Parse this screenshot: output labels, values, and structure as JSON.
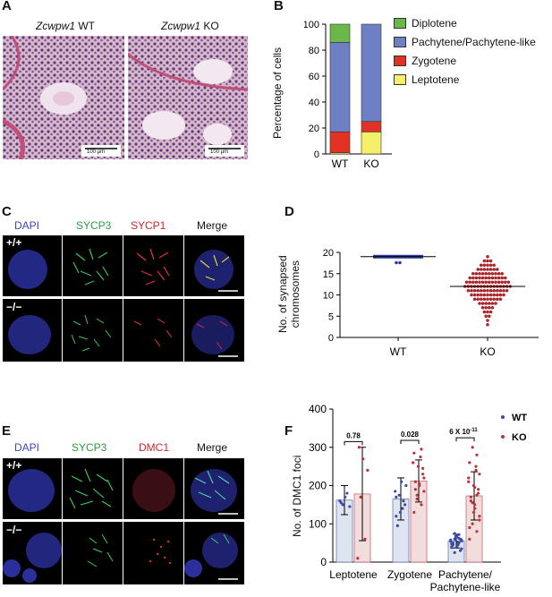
{
  "panel_letters": {
    "a": "A",
    "b": "B",
    "c": "C",
    "d": "D",
    "e": "E",
    "f": "F"
  },
  "panelA": {
    "wt_title_italic": "Zcwpw1",
    "wt_title_suffix": " WT",
    "ko_title_italic": "Zcwpw1",
    "ko_title_suffix": " KO",
    "scale_bar_label": "100 μm"
  },
  "panelB": {
    "ylabel": "Percentage of cells",
    "yticks": [
      "0",
      "20",
      "40",
      "60",
      "80",
      "100"
    ],
    "legend": [
      {
        "label": "Diplotene",
        "color": "#6ab84a"
      },
      {
        "label": "Pachytene/Pachytene-like",
        "color": "#6f7fc3"
      },
      {
        "label": "Zygotene",
        "color": "#e23226"
      },
      {
        "label": "Leptotene",
        "color": "#f5ef6a"
      }
    ]
  },
  "panelC": {
    "channels": [
      {
        "label": "DAPI",
        "color": "#3b45c4"
      },
      {
        "label": "SYCP3",
        "color": "#2e9a48"
      },
      {
        "label": "SYCP1",
        "color": "#d4252e"
      },
      {
        "label": "Merge",
        "color": "#111111"
      }
    ],
    "row_labels": [
      "+/+",
      "−/−"
    ]
  },
  "panelD": {
    "ylabel_line1": "No. of synapsed",
    "ylabel_line2": "chromosomes",
    "yticks": [
      "0",
      "5",
      "10",
      "15",
      "20"
    ],
    "xticks": [
      "WT",
      "KO"
    ]
  },
  "panelE": {
    "channels": [
      {
        "label": "DAPI",
        "color": "#3b45c4"
      },
      {
        "label": "SYCP3",
        "color": "#2e9a48"
      },
      {
        "label": "DMC1",
        "color": "#d4252e"
      },
      {
        "label": "Merge",
        "color": "#111111"
      }
    ],
    "row_labels": [
      "+/+",
      "−/−"
    ]
  },
  "panelF": {
    "ylabel": "No. of DMC1 foci",
    "yticks": [
      "0",
      "100",
      "200",
      "300",
      "400"
    ],
    "pvalues": {
      "leptotene": "0.78",
      "zygotene": "0.028",
      "pach_base": "6 X 10",
      "pach_exp": "-11"
    },
    "categories": [
      "Leptotene",
      "Zygotene",
      "Pachytene/",
      "Pachytene-like"
    ],
    "legend": [
      {
        "label": "WT",
        "color": "#3b4ba8"
      },
      {
        "label": "KO",
        "color": "#c0303a"
      }
    ]
  },
  "chart_data": [
    {
      "type": "bar",
      "stacked": true,
      "categories": [
        "WT",
        "KO"
      ],
      "ylabel": "Percentage of cells",
      "ylim": [
        0,
        100
      ],
      "series": [
        {
          "name": "Leptotene",
          "values": [
            1,
            17
          ]
        },
        {
          "name": "Zygotene",
          "values": [
            16,
            8
          ]
        },
        {
          "name": "Pachytene/Pachytene-like",
          "values": [
            69,
            75
          ]
        },
        {
          "name": "Diplotene",
          "values": [
            14,
            0
          ]
        }
      ]
    },
    {
      "type": "scatter",
      "ylabel": "No. of synapsed chromosomes",
      "ylim": [
        0,
        20
      ],
      "categories": [
        "WT",
        "KO"
      ],
      "medians": [
        19,
        12
      ],
      "wt_counts": [
        {
          "y": 19,
          "n": 60
        },
        {
          "y": 18,
          "n": 2
        }
      ],
      "ko_counts": [
        {
          "y": 19,
          "n": 1
        },
        {
          "y": 18,
          "n": 3
        },
        {
          "y": 17,
          "n": 5
        },
        {
          "y": 16,
          "n": 7
        },
        {
          "y": 15,
          "n": 10
        },
        {
          "y": 14,
          "n": 12
        },
        {
          "y": 13,
          "n": 14
        },
        {
          "y": 12,
          "n": 15
        },
        {
          "y": 11,
          "n": 13
        },
        {
          "y": 10,
          "n": 11
        },
        {
          "y": 9,
          "n": 9
        },
        {
          "y": 8,
          "n": 6
        },
        {
          "y": 7,
          "n": 4
        },
        {
          "y": 6,
          "n": 3
        },
        {
          "y": 5,
          "n": 2
        },
        {
          "y": 4,
          "n": 1
        },
        {
          "y": 3,
          "n": 1
        }
      ]
    },
    {
      "type": "bar",
      "ylabel": "No. of DMC1 foci",
      "ylim": [
        0,
        400
      ],
      "categories": [
        "Leptotene",
        "Zygotene",
        "Pachytene/Pachytene-like"
      ],
      "series": [
        {
          "name": "WT",
          "values": [
            162,
            165,
            55
          ],
          "sd": [
            38,
            55,
            18
          ]
        },
        {
          "name": "KO",
          "values": [
            178,
            212,
            173
          ],
          "sd": [
            122,
            55,
            63
          ]
        }
      ],
      "points": {
        "WT": [
          [
            160,
            180,
            150,
            145,
            170,
            155
          ],
          [
            120,
            160,
            175,
            200,
            210,
            95,
            150,
            130,
            185,
            140,
            170
          ],
          [
            40,
            50,
            60,
            55,
            70,
            45,
            30,
            65,
            58,
            52,
            48,
            62,
            75,
            35,
            42,
            50,
            60,
            68,
            55,
            45,
            38,
            72,
            25,
            58,
            66
          ]
        ],
        "KO": [
          [
            10,
            60,
            170,
            240,
            270,
            300
          ],
          [
            130,
            150,
            165,
            185,
            200,
            210,
            230,
            250,
            260,
            275,
            285,
            295,
            175,
            220,
            205,
            190,
            245
          ],
          [
            60,
            80,
            100,
            120,
            140,
            160,
            180,
            200,
            220,
            240,
            260,
            280,
            300,
            110,
            150,
            170,
            190,
            130,
            210,
            250,
            90,
            175,
            155,
            230,
            195
          ]
        ]
      },
      "pvalue_labels": [
        "0.78",
        "0.028",
        "6 X 10-11"
      ]
    }
  ]
}
